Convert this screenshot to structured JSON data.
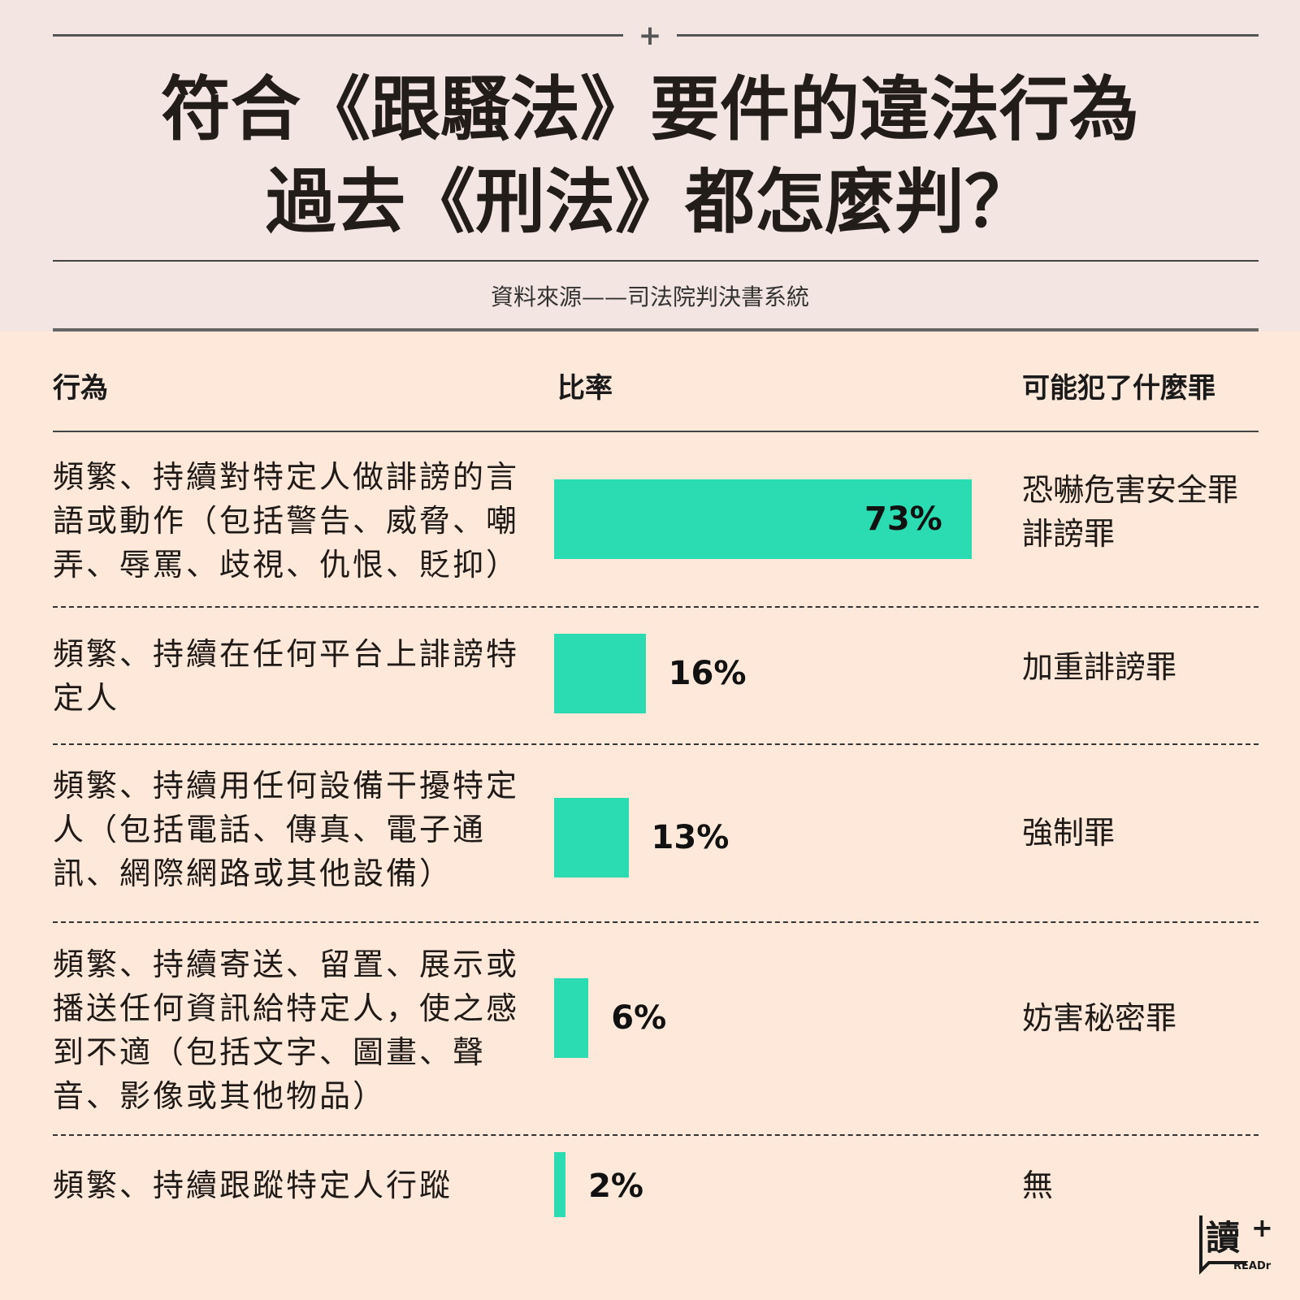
{
  "header": {
    "title_line1": "符合《跟騷法》要件的違法行為",
    "title_line2": "過去《刑法》都怎麼判？",
    "source": "資料來源——司法院判決書系統"
  },
  "columns": {
    "behavior": "行為",
    "rate": "比率",
    "crime": "可能犯了什麼罪"
  },
  "chart_data": {
    "type": "bar",
    "orientation": "horizontal",
    "title": "符合《跟騷法》要件的違法行為 過去《刑法》都怎麼判？",
    "categories": [
      "頻繁、持續對特定人做誹謗的言語或動作（包括警告、威脅、嘲弄、辱罵、歧視、仇恨、貶抑）",
      "頻繁、持續在任何平台上誹謗特定人",
      "頻繁、持續用任何設備干擾特定人（包括電話、傳真、電子通訊、網際網路或其他設備）",
      "頻繁、持續寄送、留置、展示或播送任何資訊給特定人，使之感到不適（包括文字、圖畫、聲音、影像或其他物品）",
      "頻繁、持續跟蹤特定人行蹤"
    ],
    "values": [
      73,
      16,
      13,
      6,
      2
    ],
    "labels": [
      "73%",
      "16%",
      "13%",
      "6%",
      "2%"
    ],
    "unit": "%",
    "xlim": [
      0,
      100
    ],
    "bar_color": "#2bdcb2"
  },
  "rows": [
    {
      "behavior": "頻繁、持續對特定人做誹謗的言語或動作（包括警告、威脅、嘲弄、辱罵、歧視、仇恨、貶抑）",
      "crime_line1": "恐嚇危害安全罪",
      "crime_line2": "誹謗罪"
    },
    {
      "behavior": "頻繁、持續在任何平台上誹謗特定人",
      "crime_line1": "加重誹謗罪",
      "crime_line2": ""
    },
    {
      "behavior": "頻繁、持續用任何設備干擾特定人（包括電話、傳真、電子通訊、網際網路或其他設備）",
      "crime_line1": "強制罪",
      "crime_line2": ""
    },
    {
      "behavior": "頻繁、持續寄送、留置、展示或播送任何資訊給特定人，使之感到不適（包括文字、圖畫、聲音、影像或其他物品）",
      "crime_line1": "妨害秘密罪",
      "crime_line2": ""
    },
    {
      "behavior": "頻繁、持續跟蹤特定人行蹤",
      "crime_line1": "無",
      "crime_line2": ""
    }
  ],
  "logo": {
    "glyph": "讀",
    "plus": "+",
    "text": "READr"
  },
  "colors": {
    "accent": "#2bdcb2",
    "header_bg": "#f3e6e2",
    "body_bg": "#fde8da"
  }
}
